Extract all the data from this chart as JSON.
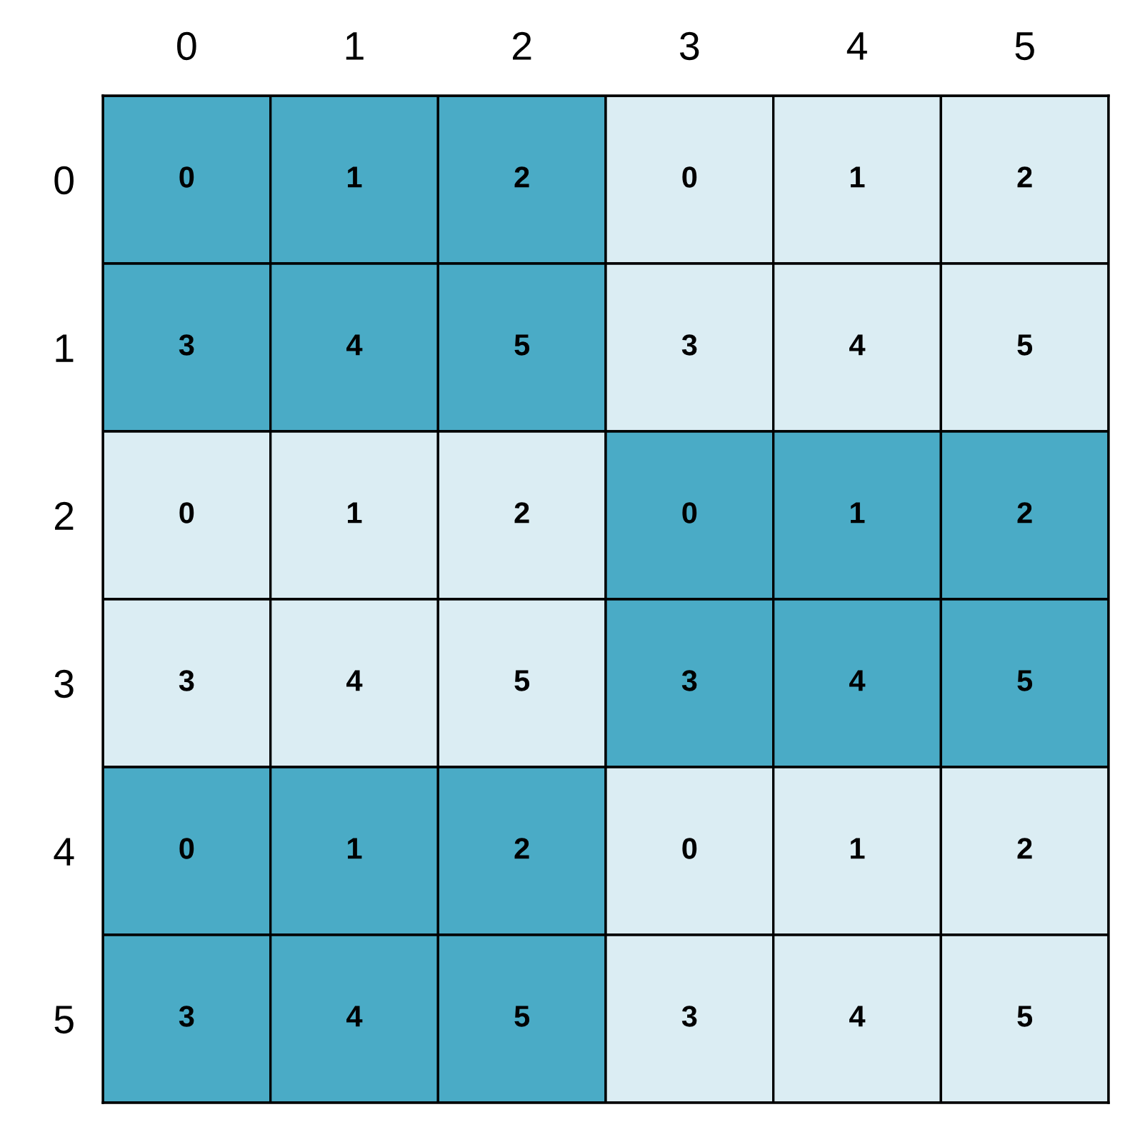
{
  "chart_data": {
    "type": "heatmap",
    "categories": [
      "0",
      "1",
      "2",
      "3",
      "4",
      "5"
    ],
    "y_categories": [
      "0",
      "1",
      "2",
      "3",
      "4",
      "5"
    ],
    "cells": [
      [
        0,
        1,
        2,
        0,
        1,
        2
      ],
      [
        3,
        4,
        5,
        3,
        4,
        5
      ],
      [
        0,
        1,
        2,
        0,
        1,
        2
      ],
      [
        3,
        4,
        5,
        3,
        4,
        5
      ],
      [
        0,
        1,
        2,
        0,
        1,
        2
      ],
      [
        3,
        4,
        5,
        3,
        4,
        5
      ]
    ],
    "colors": [
      [
        "#4aabc6",
        "#4aabc6",
        "#4aabc6",
        "#dbedf3",
        "#dbedf3",
        "#dbedf3"
      ],
      [
        "#4aabc6",
        "#4aabc6",
        "#4aabc6",
        "#dbedf3",
        "#dbedf3",
        "#dbedf3"
      ],
      [
        "#dbedf3",
        "#dbedf3",
        "#dbedf3",
        "#4aabc6",
        "#4aabc6",
        "#4aabc6"
      ],
      [
        "#dbedf3",
        "#dbedf3",
        "#dbedf3",
        "#4aabc6",
        "#4aabc6",
        "#4aabc6"
      ],
      [
        "#4aabc6",
        "#4aabc6",
        "#4aabc6",
        "#dbedf3",
        "#dbedf3",
        "#dbedf3"
      ],
      [
        "#4aabc6",
        "#4aabc6",
        "#4aabc6",
        "#dbedf3",
        "#dbedf3",
        "#dbedf3"
      ]
    ],
    "data_labels": true
  }
}
